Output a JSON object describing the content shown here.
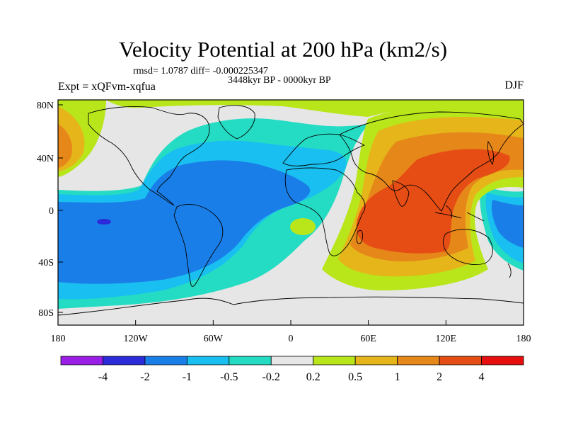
{
  "header": {
    "title": "Velocity Potential at 200 hPa (km2/s)",
    "stats": "rmsd= 1.0787 diff= -0.000225347",
    "period": "3448kyr BP - 0000kyr BP",
    "experiment": "Expt = xQFvm-xqfua",
    "season": "DJF"
  },
  "axes": {
    "x_ticks": [
      "180",
      "120W",
      "60W",
      "0",
      "60E",
      "120E",
      "180"
    ],
    "y_ticks": [
      "80N",
      "40N",
      "0",
      "40S",
      "80S"
    ]
  },
  "colorbar": {
    "colors": [
      "#9a1fe6",
      "#2b2bd9",
      "#1a7ee8",
      "#19bff0",
      "#24dcc3",
      "#e6e6e6",
      "#b8e61a",
      "#e6b51a",
      "#e6871a",
      "#e64d14",
      "#e60e0e"
    ],
    "labels": [
      "-4",
      "-2",
      "-1",
      "-0.5",
      "-0.2",
      "0.2",
      "0.5",
      "1",
      "2",
      "4"
    ]
  }
}
